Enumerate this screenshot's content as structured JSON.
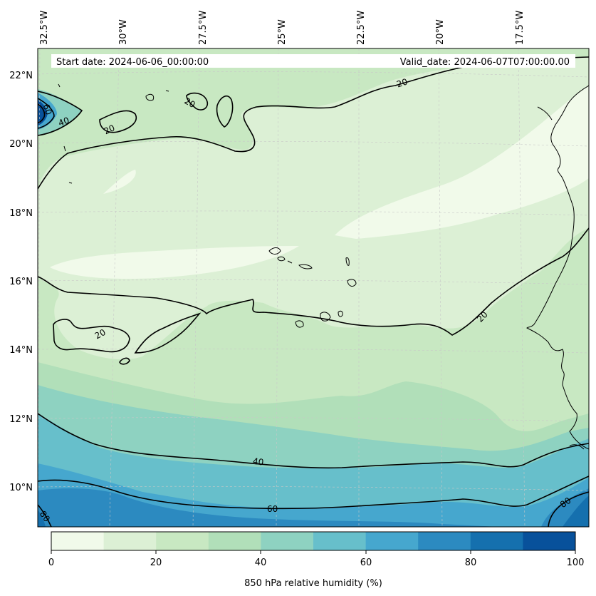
{
  "header": {
    "start_label": "Start date: 2024-06-06_00:00:00",
    "valid_label": "Valid_date: 2024-06-07T07:00:00.00"
  },
  "axes": {
    "lon_ticks": [
      "32.5°W",
      "30°W",
      "27.5°W",
      "25°W",
      "22.5°W",
      "20°W",
      "17.5°W"
    ],
    "lat_ticks": [
      "22°N",
      "20°N",
      "18°N",
      "16°N",
      "14°N",
      "12°N",
      "10°N"
    ]
  },
  "contours": {
    "labels": [
      "20",
      "20",
      "20",
      "20",
      "20",
      "40",
      "40",
      "60",
      "60",
      "80",
      "80"
    ]
  },
  "colorbar": {
    "label": "850 hPa relative humidity (%)",
    "ticks": [
      "0",
      "20",
      "40",
      "60",
      "80",
      "100"
    ],
    "colors": [
      "#f1faea",
      "#dcf0d5",
      "#c8e8c2",
      "#b1dfb9",
      "#8ed2c1",
      "#67bfcb",
      "#46a7ce",
      "#2c8ac0",
      "#1570ae",
      "#08519b"
    ]
  },
  "map_colors": {
    "land": "#000000",
    "contour": "#000000",
    "grid": "#c8c8c8"
  }
}
